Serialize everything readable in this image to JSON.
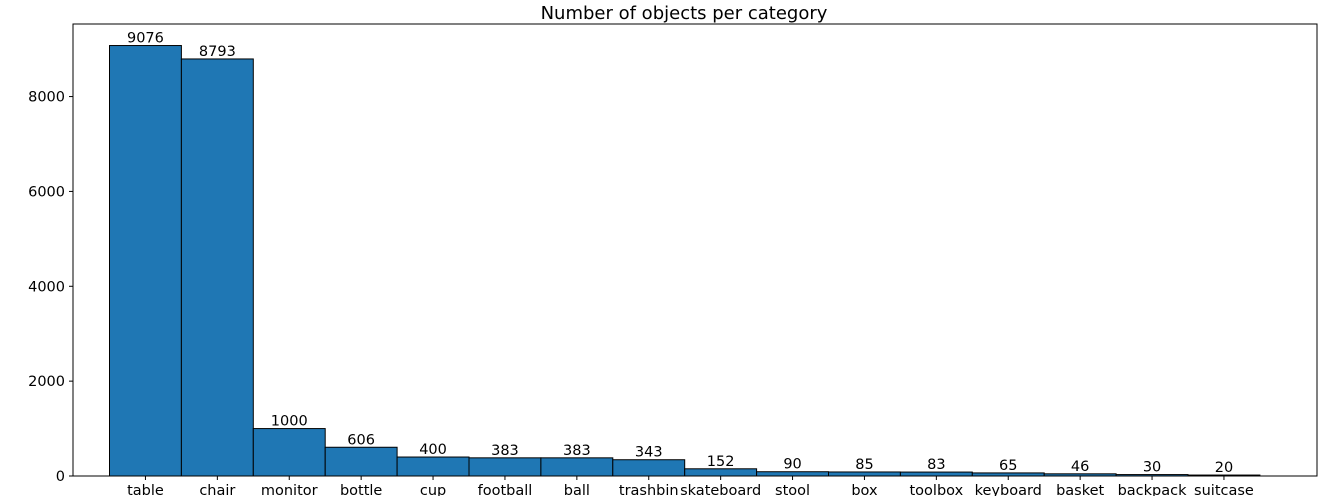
{
  "chart_data": {
    "type": "bar",
    "title": "Number of objects per category",
    "xlabel": "",
    "ylabel": "",
    "categories": [
      "table",
      "chair",
      "monitor",
      "bottle",
      "cup",
      "football",
      "ball",
      "trashbin",
      "skateboard",
      "stool",
      "box",
      "toolbox",
      "keyboard",
      "basket",
      "backpack",
      "suitcase"
    ],
    "values": [
      9076,
      8793,
      1000,
      606,
      400,
      383,
      383,
      343,
      152,
      90,
      85,
      83,
      65,
      46,
      30,
      20
    ],
    "data_labels": [
      "9076",
      "8793",
      "1000",
      "606",
      "400",
      "383",
      "383",
      "343",
      "152",
      "90",
      "85",
      "83",
      "65",
      "46",
      "30",
      "20"
    ],
    "ylim": [
      0,
      9530
    ],
    "yticks": [
      0,
      2000,
      4000,
      6000,
      8000
    ],
    "ytick_labels": [
      "0",
      "2000",
      "4000",
      "6000",
      "8000"
    ],
    "bar_color": "#1f77b4",
    "bar_edge_color": "#000000",
    "grid": false,
    "legend": "none"
  }
}
